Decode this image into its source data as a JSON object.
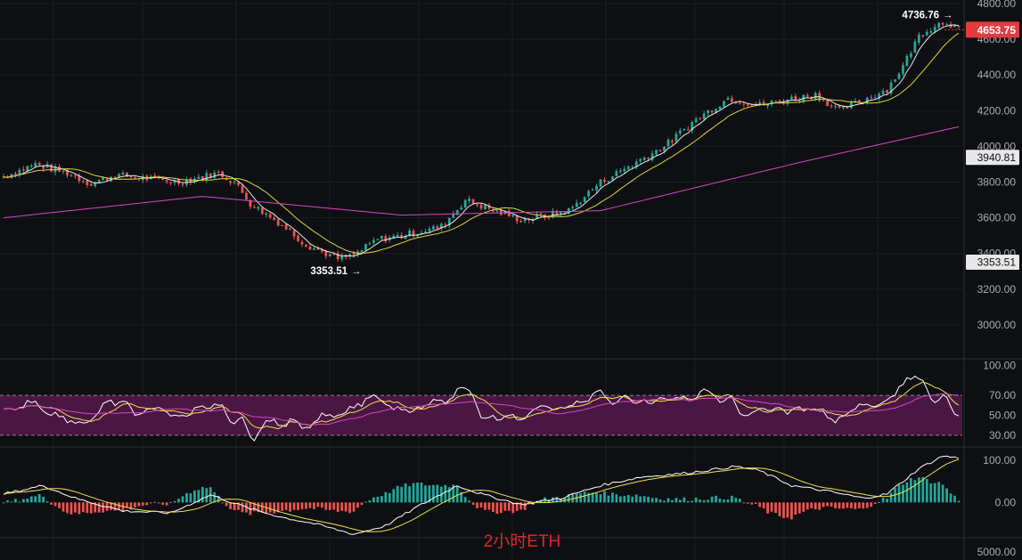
{
  "chart_data": [
    {
      "type": "candlestick",
      "title": "",
      "caption": "2小时ETH",
      "x_range": [
        0,
        240
      ],
      "y_range": [
        2850,
        4820
      ],
      "y_ticks": [
        "4800.00",
        "4600.00",
        "4400.00",
        "4200.00",
        "4000.00",
        "3800.00",
        "3600.00",
        "3400.00",
        "3200.00",
        "3000.00"
      ],
      "y_tick_values": [
        4800,
        4600,
        4400,
        4200,
        4000,
        3800,
        3600,
        3400,
        3200,
        3000
      ],
      "last_price_label": "4653.75",
      "last_price": 4653.75,
      "price_labels": [
        "3940.81",
        "3353.51"
      ],
      "price_label_values": [
        3940.81,
        3353.51
      ],
      "max_label": "4736.76",
      "max_value": 4736.76,
      "min_label": "3353.51",
      "min_value": 3353.51,
      "close_anchors": [
        [
          0,
          3830
        ],
        [
          8,
          3900
        ],
        [
          16,
          3850
        ],
        [
          22,
          3790
        ],
        [
          28,
          3840
        ],
        [
          36,
          3820
        ],
        [
          44,
          3800
        ],
        [
          54,
          3850
        ],
        [
          58,
          3800
        ],
        [
          62,
          3680
        ],
        [
          70,
          3560
        ],
        [
          76,
          3450
        ],
        [
          84,
          3370
        ],
        [
          88,
          3390
        ],
        [
          94,
          3480
        ],
        [
          100,
          3500
        ],
        [
          110,
          3550
        ],
        [
          116,
          3700
        ],
        [
          122,
          3650
        ],
        [
          130,
          3590
        ],
        [
          136,
          3610
        ],
        [
          142,
          3640
        ],
        [
          150,
          3800
        ],
        [
          158,
          3900
        ],
        [
          166,
          4000
        ],
        [
          174,
          4150
        ],
        [
          182,
          4270
        ],
        [
          190,
          4230
        ],
        [
          196,
          4260
        ],
        [
          204,
          4290
        ],
        [
          210,
          4200
        ],
        [
          216,
          4260
        ],
        [
          222,
          4320
        ],
        [
          226,
          4450
        ],
        [
          230,
          4620
        ],
        [
          234,
          4680
        ],
        [
          237,
          4700
        ],
        [
          240,
          4653.75
        ]
      ],
      "ma_fast_color": "#e8e8e8",
      "ma_slow_color": "#e0d63a",
      "ma_long_color": "#d548c4",
      "ma_long_anchors": [
        [
          0,
          3600
        ],
        [
          50,
          3720
        ],
        [
          100,
          3615
        ],
        [
          150,
          3640
        ],
        [
          200,
          3910
        ],
        [
          240,
          4110
        ]
      ],
      "up_color": "#26a69a",
      "down_color": "#ef5350"
    },
    {
      "type": "line",
      "indicator": "RSI",
      "x_range": [
        0,
        240
      ],
      "y_range": [
        20,
        105
      ],
      "y_ticks": [
        "100.00",
        "70.00",
        "50.00",
        "30.00"
      ],
      "y_tick_values": [
        100,
        70,
        50,
        30
      ],
      "band": [
        30,
        70
      ],
      "band_color": "#4a1642",
      "series_colors": [
        "#ffffff",
        "#f1e14a",
        "#d548c4"
      ]
    },
    {
      "type": "bar",
      "indicator": "MACD",
      "x_range": [
        0,
        240
      ],
      "y_range": [
        -75,
        125
      ],
      "y_ticks": [
        "100.00",
        "0.00"
      ],
      "y_tick_values": [
        100,
        0
      ],
      "macd_anchors": [
        [
          0,
          20
        ],
        [
          10,
          40
        ],
        [
          18,
          10
        ],
        [
          30,
          -20
        ],
        [
          42,
          -25
        ],
        [
          52,
          18
        ],
        [
          62,
          -15
        ],
        [
          70,
          -35
        ],
        [
          78,
          -50
        ],
        [
          88,
          -75
        ],
        [
          96,
          -55
        ],
        [
          104,
          -10
        ],
        [
          114,
          40
        ],
        [
          120,
          20
        ],
        [
          130,
          -5
        ],
        [
          140,
          10
        ],
        [
          150,
          40
        ],
        [
          160,
          60
        ],
        [
          172,
          70
        ],
        [
          184,
          85
        ],
        [
          190,
          75
        ],
        [
          198,
          40
        ],
        [
          208,
          25
        ],
        [
          216,
          10
        ],
        [
          222,
          20
        ],
        [
          230,
          80
        ],
        [
          236,
          110
        ],
        [
          240,
          105
        ]
      ],
      "hist_colors": [
        "#26a69a",
        "#ef5350"
      ]
    },
    {
      "type": "bar",
      "indicator": "Volume",
      "y_ticks": [
        "5000.00"
      ],
      "y_tick_values": [
        5000
      ]
    }
  ]
}
